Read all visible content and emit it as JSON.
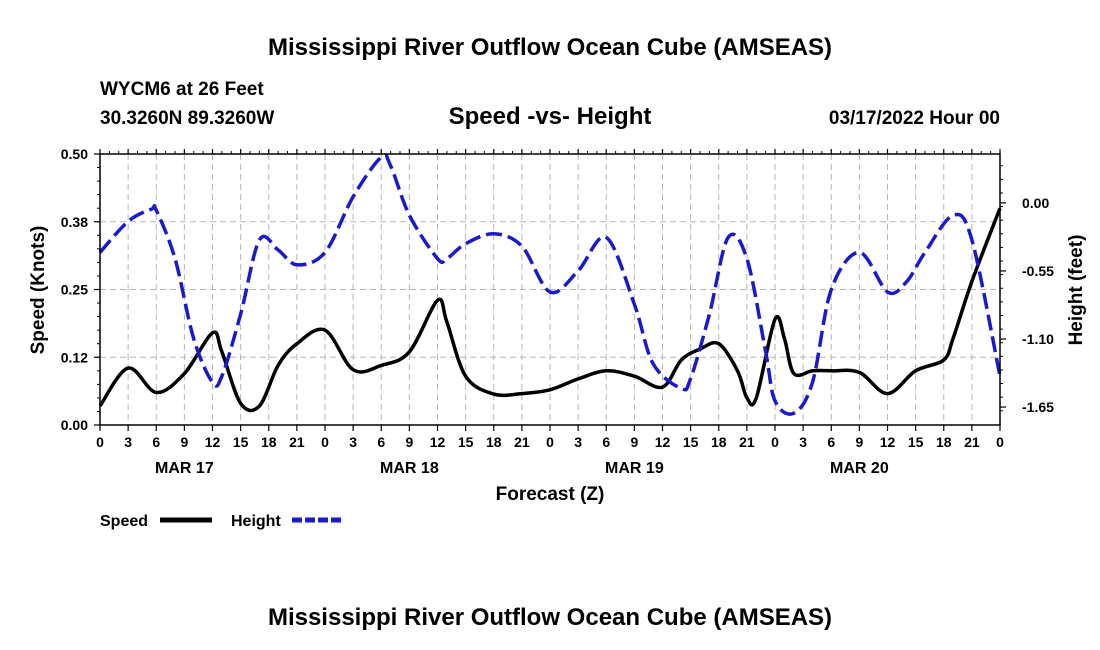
{
  "page_title": "Mississippi River Outflow Ocean Cube (AMSEAS)",
  "page_title_repeat": "Mississippi River Outflow Ocean Cube (AMSEAS)",
  "station": {
    "name": "WYCM6 at 26 Feet",
    "location": "30.3260N  89.3260W"
  },
  "chart_heading": "Speed -vs- Height",
  "run_time": "03/17/2022 Hour 00",
  "chart_data": {
    "type": "line",
    "title": "Speed -vs- Height",
    "xlabel": "Forecast (Z)",
    "ylabel": "Speed (Knots)",
    "y2label": "Height (feet)",
    "xlim": [
      0,
      96
    ],
    "ylim": [
      0,
      0.5
    ],
    "y2lim": [
      -1.795,
      0.395
    ],
    "grid": true,
    "x_tick_labels": [
      "0",
      "3",
      "6",
      "9",
      "12",
      "15",
      "18",
      "21",
      "0",
      "3",
      "6",
      "9",
      "12",
      "15",
      "18",
      "21",
      "0",
      "3",
      "6",
      "9",
      "12",
      "15",
      "18",
      "21",
      "0",
      "3",
      "6",
      "9",
      "12",
      "15",
      "18",
      "21",
      "0"
    ],
    "y_ticks": [
      0,
      0.125,
      0.25,
      0.375,
      0.5
    ],
    "y_tick_labels": [
      "0.00",
      "0.12",
      "0.25",
      "0.38",
      "0.50"
    ],
    "y2_ticks": [
      0,
      -0.55,
      -1.1,
      -1.65
    ],
    "y2_tick_labels": [
      "0.00",
      "-0.55",
      "-1.10",
      "-1.65"
    ],
    "date_labels": [
      {
        "label": "MAR 17",
        "hour": 9
      },
      {
        "label": "MAR 18",
        "hour": 33
      },
      {
        "label": "MAR 19",
        "hour": 57
      },
      {
        "label": "MAR 20",
        "hour": 81
      }
    ],
    "legend_position": "bottom-left",
    "series": [
      {
        "name": "Speed",
        "axis": "left",
        "color": "#000000",
        "dash": "solid",
        "x": [
          0,
          3,
          6,
          9,
          12,
          13,
          15,
          17,
          19,
          21,
          24,
          27,
          30,
          33,
          36,
          37,
          39,
          42,
          45,
          48,
          51,
          54,
          57,
          60,
          62,
          64,
          66,
          68,
          69,
          70,
          72,
          73,
          74,
          76,
          78,
          81,
          84,
          87,
          90,
          91,
          93,
          96
        ],
        "y": [
          0.035,
          0.105,
          0.06,
          0.095,
          0.17,
          0.135,
          0.04,
          0.035,
          0.11,
          0.15,
          0.175,
          0.102,
          0.11,
          0.135,
          0.23,
          0.19,
          0.09,
          0.057,
          0.058,
          0.065,
          0.085,
          0.1,
          0.09,
          0.07,
          0.12,
          0.14,
          0.15,
          0.1,
          0.05,
          0.05,
          0.195,
          0.16,
          0.095,
          0.1,
          0.1,
          0.097,
          0.058,
          0.1,
          0.12,
          0.16,
          0.265,
          0.4
        ]
      },
      {
        "name": "Height",
        "axis": "right",
        "color": "#1a1acc",
        "dash": "dashed",
        "x": [
          0,
          3,
          5.5,
          6,
          8,
          10,
          12,
          13,
          15,
          17,
          19,
          21,
          24,
          27,
          30,
          31,
          33,
          36,
          37,
          39,
          42,
          45,
          48,
          51,
          54,
          57,
          59,
          62,
          63,
          65,
          67,
          69,
          71,
          72,
          74,
          76,
          78,
          81,
          84,
          86,
          88,
          91,
          93,
          96
        ],
        "y": [
          -0.4,
          -0.15,
          -0.05,
          -0.06,
          -0.45,
          -1.1,
          -1.45,
          -1.4,
          -0.9,
          -0.3,
          -0.38,
          -0.5,
          -0.4,
          0.05,
          0.37,
          0.3,
          -0.1,
          -0.45,
          -0.45,
          -0.33,
          -0.25,
          -0.35,
          -0.72,
          -0.55,
          -0.28,
          -0.82,
          -1.3,
          -1.5,
          -1.42,
          -0.9,
          -0.28,
          -0.45,
          -1.2,
          -1.6,
          -1.7,
          -1.45,
          -0.7,
          -0.4,
          -0.72,
          -0.64,
          -0.4,
          -0.1,
          -0.3,
          -1.4
        ]
      }
    ]
  }
}
